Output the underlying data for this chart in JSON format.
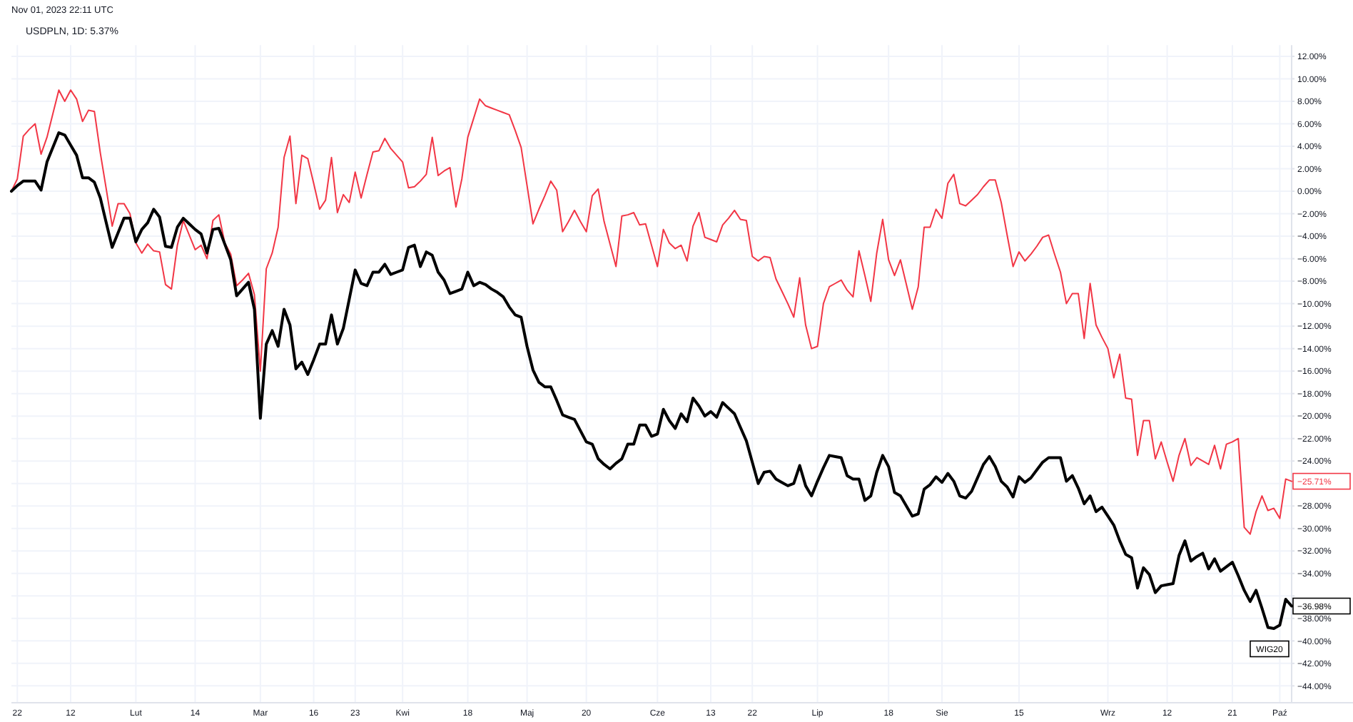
{
  "chart_data": {
    "type": "line",
    "title": "USDPLN, 1D: 5.37%",
    "subtitle": "Nov 01, 2023 22:11 UTC",
    "categories": [
      null,
      "22",
      null,
      null,
      null,
      null,
      null,
      null,
      null,
      null,
      "12",
      null,
      null,
      null,
      null,
      null,
      null,
      null,
      null,
      null,
      null,
      "Lut",
      null,
      null,
      null,
      null,
      null,
      null,
      null,
      null,
      null,
      "14",
      null,
      null,
      null,
      null,
      null,
      null,
      null,
      null,
      null,
      null,
      "Mar",
      null,
      null,
      null,
      null,
      null,
      null,
      null,
      null,
      "16",
      null,
      null,
      null,
      null,
      null,
      null,
      "23",
      null,
      null,
      null,
      null,
      null,
      null,
      null,
      "Kwi",
      null,
      null,
      null,
      null,
      null,
      null,
      null,
      null,
      null,
      null,
      "18",
      null,
      null,
      null,
      null,
      null,
      null,
      null,
      null,
      null,
      "Maj",
      null,
      null,
      null,
      null,
      null,
      null,
      null,
      null,
      null,
      "20",
      null,
      null,
      null,
      null,
      null,
      null,
      null,
      null,
      null,
      null,
      null,
      "Cze",
      null,
      null,
      null,
      null,
      null,
      null,
      null,
      null,
      "13",
      null,
      null,
      null,
      null,
      null,
      null,
      "22",
      null,
      null,
      null,
      null,
      null,
      null,
      null,
      null,
      null,
      null,
      "Lip",
      null,
      null,
      null,
      null,
      null,
      null,
      null,
      null,
      null,
      null,
      null,
      "18",
      null,
      null,
      null,
      null,
      null,
      null,
      null,
      null,
      "Sie",
      null,
      null,
      null,
      null,
      null,
      null,
      null,
      null,
      null,
      null,
      null,
      null,
      "15",
      null,
      null,
      null,
      null,
      null,
      null,
      null,
      null,
      null,
      null,
      null,
      null,
      null,
      null,
      "Wrz",
      null,
      null,
      null,
      null,
      null,
      null,
      null,
      null,
      null,
      "12",
      null,
      null,
      null,
      null,
      null,
      null,
      null,
      null,
      null,
      null,
      "21",
      null,
      null,
      null,
      null,
      null,
      null,
      null,
      "Paź",
      null,
      null
    ],
    "ylim": [
      -45.5,
      13
    ],
    "yticks": [
      {
        "value": 12,
        "label": "12.00%"
      },
      {
        "value": 10,
        "label": "10.00%"
      },
      {
        "value": 8,
        "label": "8.00%"
      },
      {
        "value": 6,
        "label": "6.00%"
      },
      {
        "value": 4,
        "label": "4.00%"
      },
      {
        "value": 2,
        "label": "2.00%"
      },
      {
        "value": 0,
        "label": "0.00%"
      },
      {
        "value": -2,
        "label": "−2.00%"
      },
      {
        "value": -4,
        "label": "−4.00%"
      },
      {
        "value": -6,
        "label": "−6.00%"
      },
      {
        "value": -8,
        "label": "−8.00%"
      },
      {
        "value": -10,
        "label": "−10.00%"
      },
      {
        "value": -12,
        "label": "−12.00%"
      },
      {
        "value": -14,
        "label": "−14.00%"
      },
      {
        "value": -16,
        "label": "−16.00%"
      },
      {
        "value": -18,
        "label": "−18.00%"
      },
      {
        "value": -20,
        "label": "−20.00%"
      },
      {
        "value": -22,
        "label": "−22.00%"
      },
      {
        "value": -24,
        "label": "−24.00%"
      },
      {
        "value": -26,
        "label": null
      },
      {
        "value": -28,
        "label": "−28.00%"
      },
      {
        "value": -30,
        "label": "−30.00%"
      },
      {
        "value": -32,
        "label": "−32.00%"
      },
      {
        "value": -34,
        "label": "−34.00%"
      },
      {
        "value": -36,
        "label": null
      },
      {
        "value": -38,
        "label": "−38.00%"
      },
      {
        "value": -40,
        "label": "−40.00%"
      },
      {
        "value": -42,
        "label": "−42.00%"
      },
      {
        "value": -44,
        "label": "−44.00%"
      }
    ],
    "grid": true,
    "marker": "none",
    "line_style": "solid",
    "series": [
      {
        "color": "#f23645",
        "values": [
          0,
          1.1,
          4.9,
          5.5,
          6.0,
          3.3,
          4.8,
          6.9,
          9.0,
          8.0,
          9.0,
          8.2,
          6.2,
          7.2,
          7.1,
          3.4,
          0.2,
          -3.1,
          -1.1,
          -1.1,
          -2.0,
          -4.6,
          -5.5,
          -4.7,
          -5.3,
          -5.4,
          -8.3,
          -8.7,
          -4.8,
          -2.6,
          -3.9,
          -5.2,
          -4.8,
          -6.0,
          -2.6,
          -2.1,
          -4.6,
          -5.6,
          -8.4,
          -7.9,
          -7.3,
          -9.2,
          -16.0,
          -6.9,
          -5.5,
          -3.2,
          3.0,
          4.9,
          -1.1,
          3.2,
          2.9,
          0.7,
          -1.6,
          -0.8,
          3.0,
          -1.9,
          -0.3,
          -1.0,
          1.7,
          -0.6,
          1.5,
          3.5,
          3.6,
          4.7,
          3.8,
          3.2,
          2.6,
          0.3,
          0.4,
          0.9,
          1.5,
          4.8,
          1.4,
          1.8,
          2.1,
          -1.4,
          1.1,
          4.8,
          6.5,
          8.2,
          7.6,
          7.4,
          7.2,
          7.0,
          6.8,
          5.4,
          3.9,
          0.5,
          -2.9,
          -1.6,
          -0.4,
          0.9,
          0.1,
          -3.6,
          -2.7,
          -1.7,
          -2.7,
          -3.6,
          -0.4,
          0.2,
          -2.7,
          -4.7,
          -6.7,
          -2.2,
          -2.1,
          -1.9,
          -3.0,
          -2.9,
          -4.8,
          -6.7,
          -3.4,
          -4.6,
          -5.1,
          -4.8,
          -6.2,
          -3.1,
          -1.9,
          -4.1,
          -4.3,
          -4.5,
          -3.0,
          -2.4,
          -1.7,
          -2.5,
          -2.6,
          -5.8,
          -6.2,
          -5.8,
          -5.9,
          -7.8,
          -8.9,
          -10.0,
          -11.2,
          -7.7,
          -11.9,
          -14.0,
          -13.8,
          -10.0,
          -8.5,
          -8.2,
          -7.9,
          -8.8,
          -9.4,
          -5.3,
          -7.5,
          -9.8,
          -5.5,
          -2.5,
          -6.1,
          -7.5,
          -6.1,
          -8.3,
          -10.5,
          -8.5,
          -3.2,
          -3.2,
          -1.6,
          -2.4,
          0.7,
          1.5,
          -1.1,
          -1.3,
          -0.8,
          -0.3,
          0.4,
          1.0,
          1.0,
          -1.0,
          -3.9,
          -6.7,
          -5.4,
          -6.2,
          -5.6,
          -4.9,
          -4.1,
          -3.9,
          -5.6,
          -7.2,
          -10.0,
          -9.1,
          -9.1,
          -13.1,
          -8.2,
          -11.9,
          -13.0,
          -14.0,
          -16.6,
          -14.5,
          -18.4,
          -18.5,
          -23.5,
          -20.4,
          -20.4,
          -23.8,
          -22.3,
          -24.1,
          -25.8,
          -23.5,
          -22.0,
          -24.4,
          -23.7,
          -24.0,
          -24.3,
          -22.6,
          -24.7,
          -22.5,
          -22.3,
          -22.0,
          -29.9,
          -30.5,
          -28.5,
          -27.1,
          -28.4,
          -28.2,
          -29.1,
          -25.6,
          -25.8
        ]
      },
      {
        "name": "WIG20",
        "color": "#000000",
        "values": [
          0,
          0.5,
          0.9,
          0.9,
          0.9,
          0.1,
          2.6,
          3.9,
          5.2,
          5.0,
          4.1,
          3.2,
          1.2,
          1.2,
          0.8,
          -0.6,
          -2.8,
          -5.0,
          -3.7,
          -2.4,
          -2.4,
          -4.5,
          -3.4,
          -2.8,
          -1.6,
          -2.3,
          -4.9,
          -5.0,
          -3.2,
          -2.4,
          -2.9,
          -3.4,
          -3.8,
          -5.5,
          -3.4,
          -3.3,
          -4.7,
          -6.1,
          -9.3,
          -8.7,
          -8.1,
          -10.5,
          -20.2,
          -13.6,
          -12.4,
          -13.8,
          -10.5,
          -11.9,
          -15.8,
          -15.2,
          -16.3,
          -15.0,
          -13.6,
          -13.6,
          -11.0,
          -13.6,
          -12.2,
          -9.6,
          -7.0,
          -8.2,
          -8.4,
          -7.2,
          -7.2,
          -6.5,
          -7.4,
          -7.2,
          -7.0,
          -5.0,
          -4.8,
          -6.7,
          -5.4,
          -5.7,
          -7.2,
          -7.9,
          -9.1,
          -8.9,
          -8.7,
          -7.2,
          -8.4,
          -8.1,
          -8.3,
          -8.7,
          -9.0,
          -9.4,
          -10.3,
          -11.0,
          -11.2,
          -13.8,
          -15.9,
          -17.0,
          -17.4,
          -17.4,
          -18.6,
          -19.9,
          -20.1,
          -20.3,
          -21.3,
          -22.3,
          -22.5,
          -23.8,
          -24.3,
          -24.7,
          -24.2,
          -23.8,
          -22.5,
          -22.5,
          -20.8,
          -20.8,
          -21.8,
          -21.6,
          -19.4,
          -20.4,
          -21.1,
          -19.8,
          -20.5,
          -18.4,
          -19.1,
          -20.0,
          -19.6,
          -20.1,
          -18.8,
          -19.3,
          -19.8,
          -21.0,
          -22.2,
          -24.1,
          -26.0,
          -25.0,
          -24.9,
          -25.6,
          -25.9,
          -26.2,
          -26.0,
          -24.4,
          -26.2,
          -27.1,
          -25.8,
          -24.6,
          -23.5,
          -23.6,
          -23.7,
          -25.3,
          -25.6,
          -25.6,
          -27.5,
          -27.1,
          -25.0,
          -23.5,
          -24.5,
          -26.8,
          -27.1,
          -28.0,
          -28.9,
          -28.7,
          -26.5,
          -26.1,
          -25.4,
          -25.9,
          -25.1,
          -25.8,
          -27.1,
          -27.3,
          -26.7,
          -25.5,
          -24.3,
          -23.6,
          -24.5,
          -25.8,
          -26.3,
          -27.2,
          -25.4,
          -25.9,
          -25.5,
          -24.8,
          -24.1,
          -23.7,
          -23.7,
          -23.7,
          -25.8,
          -25.3,
          -26.4,
          -27.8,
          -27.1,
          -28.5,
          -28.1,
          -28.9,
          -29.7,
          -31.1,
          -32.3,
          -32.6,
          -35.3,
          -33.5,
          -34.1,
          -35.7,
          -35.1,
          -35.0,
          -34.9,
          -32.4,
          -31.1,
          -32.9,
          -32.5,
          -32.2,
          -33.6,
          -32.7,
          -33.8,
          -33.4,
          -33.0,
          -34.2,
          -35.5,
          -36.5,
          -35.5,
          -37.1,
          -38.8,
          -38.9,
          -38.6,
          -36.3,
          -36.9
        ]
      }
    ],
    "annotations": [
      "−25.71%",
      "−36.98%"
    ]
  }
}
